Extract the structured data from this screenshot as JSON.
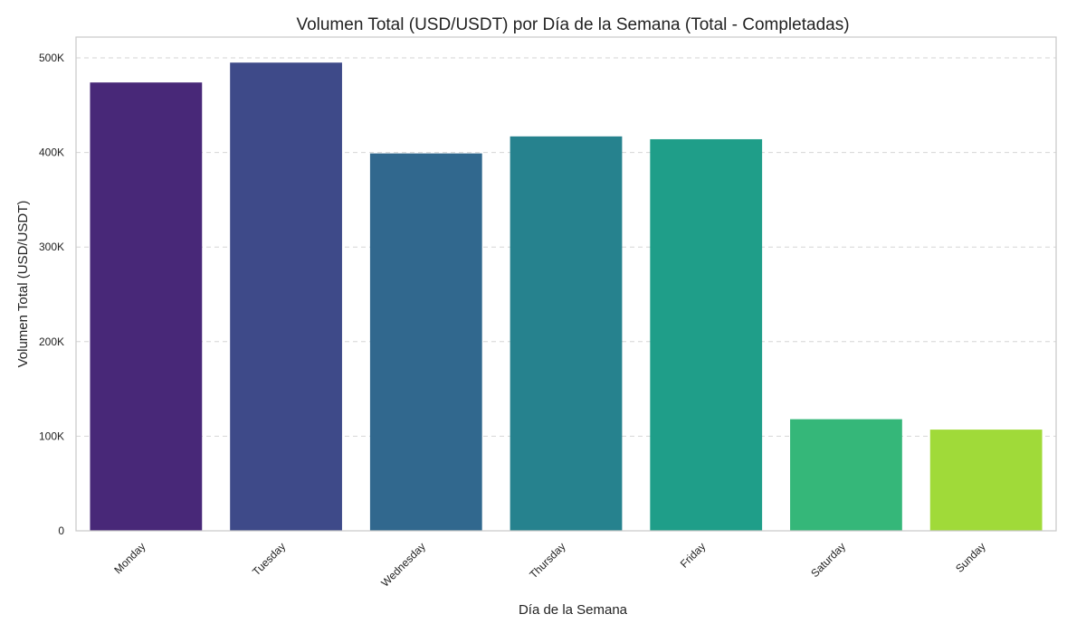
{
  "chart_data": {
    "type": "bar",
    "title": "Volumen Total (USD/USDT) por Día de la Semana (Total - Completadas)",
    "xlabel": "Día de la Semana",
    "ylabel": "Volumen Total (USD/USDT)",
    "categories": [
      "Monday",
      "Tuesday",
      "Wednesday",
      "Thursday",
      "Friday",
      "Saturday",
      "Sunday"
    ],
    "values": [
      474000,
      495000,
      399000,
      417000,
      414000,
      118000,
      107000
    ],
    "colors": [
      "#482878",
      "#3e4a89",
      "#31688e",
      "#26828e",
      "#1f9e89",
      "#35b779",
      "#a0da39"
    ],
    "ylim": [
      0,
      522000
    ],
    "yticks": [
      0,
      100000,
      200000,
      300000,
      400000,
      500000
    ],
    "ytick_labels": [
      "0",
      "100K",
      "200K",
      "300K",
      "400K",
      "500K"
    ],
    "grid": "y-dashed",
    "legend": "none"
  }
}
